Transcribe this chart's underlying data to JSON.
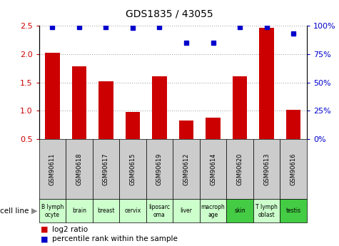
{
  "title": "GDS1835 / 43055",
  "samples": [
    "GSM90611",
    "GSM90618",
    "GSM90617",
    "GSM90615",
    "GSM90619",
    "GSM90612",
    "GSM90614",
    "GSM90620",
    "GSM90613",
    "GSM90616"
  ],
  "cell_lines": [
    "B lymph\nocyte",
    "brain",
    "breast",
    "cervix",
    "liposarc\noma",
    "liver",
    "macroph\nage",
    "skin",
    "T lymph\noblast",
    "testis"
  ],
  "cell_line_colors": [
    "#ccffcc",
    "#ccffcc",
    "#ccffcc",
    "#ccffcc",
    "#ccffcc",
    "#ccffcc",
    "#ccffcc",
    "#44cc44",
    "#ccffcc",
    "#44cc44"
  ],
  "log2_ratio": [
    2.02,
    1.78,
    1.52,
    0.98,
    1.61,
    0.83,
    0.88,
    1.61,
    2.47,
    1.01
  ],
  "percentile_rank": [
    99,
    99,
    99,
    98,
    99,
    85,
    85,
    99,
    99,
    93
  ],
  "ylim_left": [
    0.5,
    2.5
  ],
  "ylim_right": [
    0,
    100
  ],
  "yticks_left": [
    0.5,
    1.0,
    1.5,
    2.0,
    2.5
  ],
  "yticks_right": [
    0,
    25,
    50,
    75,
    100
  ],
  "bar_color": "#cc0000",
  "dot_color": "#0000cc",
  "grid_color": "#aaaaaa",
  "sample_bg_color": "#cccccc",
  "legend_bar_label": "log2 ratio",
  "legend_dot_label": "percentile rank within the sample",
  "cell_line_label": "cell line"
}
